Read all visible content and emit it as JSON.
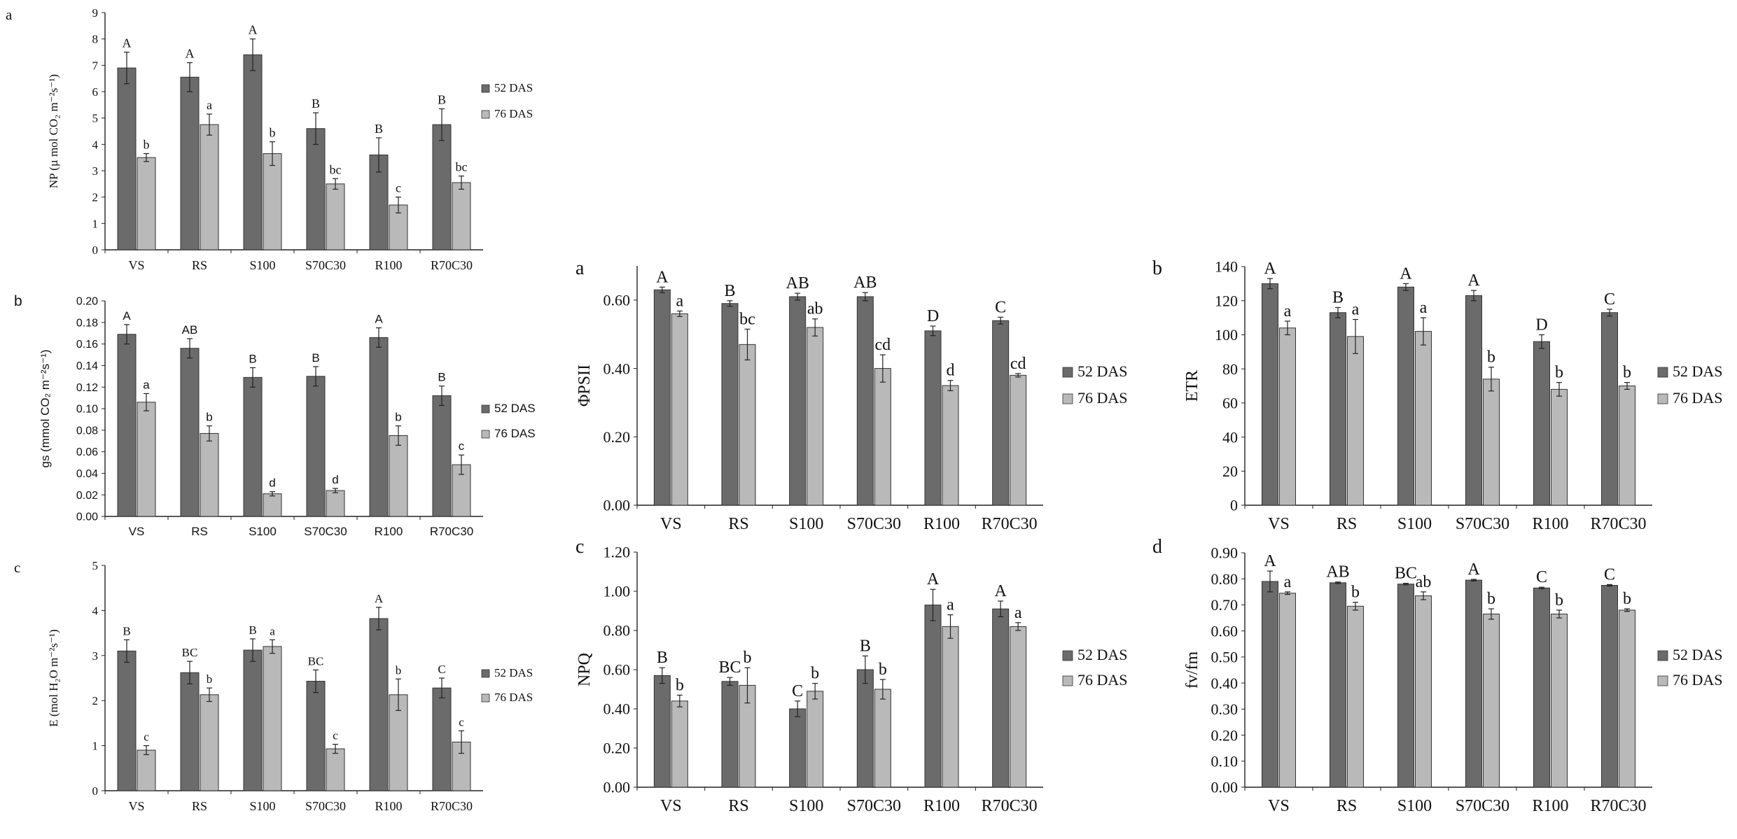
{
  "categories": [
    "VS",
    "RS",
    "S100",
    "S70C30",
    "R100",
    "R70C30"
  ],
  "legend": [
    "52 DAS",
    "76 DAS"
  ],
  "colors": {
    "dark": "#6b6b6b",
    "light": "#b9b9b9"
  },
  "chart_data": [
    {
      "id": "left-a",
      "panel_label": "a",
      "type": "bar",
      "ylabel": "NP (µ mol CO₂ m⁻²s⁻¹)",
      "ylim": [
        0,
        9
      ],
      "yticks": [
        "0",
        "1",
        "2",
        "3",
        "4",
        "5",
        "6",
        "7",
        "8",
        "9"
      ],
      "series": [
        {
          "name": "52 DAS",
          "values": [
            6.9,
            6.55,
            7.4,
            4.6,
            3.6,
            4.75
          ],
          "errors": [
            0.6,
            0.55,
            0.6,
            0.6,
            0.65,
            0.6
          ],
          "letters": [
            "A",
            "A",
            "A",
            "B",
            "B",
            "B"
          ]
        },
        {
          "name": "76 DAS",
          "values": [
            3.5,
            4.75,
            3.65,
            2.5,
            1.7,
            2.55
          ],
          "errors": [
            0.15,
            0.4,
            0.45,
            0.2,
            0.3,
            0.25
          ],
          "letters": [
            "b",
            "a",
            "b",
            "bc",
            "c",
            "bc"
          ]
        }
      ]
    },
    {
      "id": "left-b",
      "panel_label": "b",
      "type": "bar",
      "ylabel": "gs (mmol CO₂ m⁻²s⁻¹)",
      "ylim": [
        0,
        0.2
      ],
      "yticks": [
        "0.00",
        "0.02",
        "0.04",
        "0.06",
        "0.08",
        "0.10",
        "0.12",
        "0.14",
        "0.16",
        "0.18",
        "0.20"
      ],
      "series": [
        {
          "name": "52 DAS",
          "values": [
            0.169,
            0.156,
            0.129,
            0.13,
            0.166,
            0.112
          ],
          "errors": [
            0.009,
            0.009,
            0.009,
            0.009,
            0.009,
            0.009
          ],
          "letters": [
            "A",
            "AB",
            "B",
            "B",
            "A",
            "B"
          ]
        },
        {
          "name": "76 DAS",
          "values": [
            0.106,
            0.077,
            0.021,
            0.024,
            0.075,
            0.048
          ],
          "errors": [
            0.008,
            0.007,
            0.002,
            0.002,
            0.009,
            0.009
          ],
          "letters": [
            "a",
            "b",
            "d",
            "d",
            "b",
            "c"
          ]
        }
      ]
    },
    {
      "id": "left-c",
      "panel_label": "c",
      "type": "bar",
      "ylabel": "E (mol H₂O m⁻²s⁻¹)",
      "ylim": [
        0,
        5
      ],
      "yticks": [
        "0",
        "1",
        "2",
        "3",
        "4",
        "5"
      ],
      "series": [
        {
          "name": "52 DAS",
          "values": [
            3.1,
            2.62,
            3.12,
            2.43,
            3.82,
            2.28
          ],
          "errors": [
            0.25,
            0.25,
            0.25,
            0.25,
            0.25,
            0.22
          ],
          "letters": [
            "B",
            "BC",
            "B",
            "BC",
            "A",
            "C"
          ]
        },
        {
          "name": "76 DAS",
          "values": [
            0.9,
            2.13,
            3.2,
            0.93,
            2.13,
            1.08
          ],
          "errors": [
            0.1,
            0.15,
            0.15,
            0.1,
            0.35,
            0.25
          ],
          "letters": [
            "c",
            "b",
            "a",
            "c",
            "b",
            "c"
          ]
        }
      ]
    },
    {
      "id": "right-a",
      "panel_label": "a",
      "type": "bar",
      "ylabel": "ΦPSII",
      "ylim": [
        0,
        0.7
      ],
      "yticks": [
        "0.00",
        "0.20",
        "0.40",
        "0.60"
      ],
      "series": [
        {
          "name": "52 DAS",
          "values": [
            0.63,
            0.59,
            0.61,
            0.61,
            0.51,
            0.54
          ],
          "errors": [
            0.008,
            0.008,
            0.01,
            0.012,
            0.014,
            0.01
          ],
          "letters": [
            "A",
            "B",
            "AB",
            "AB",
            "D",
            "C"
          ]
        },
        {
          "name": "76 DAS",
          "values": [
            0.56,
            0.47,
            0.52,
            0.4,
            0.35,
            0.38
          ],
          "errors": [
            0.008,
            0.045,
            0.025,
            0.04,
            0.015,
            0.005
          ],
          "letters": [
            "a",
            "bc",
            "ab",
            "cd",
            "d",
            "cd"
          ]
        }
      ]
    },
    {
      "id": "right-b",
      "panel_label": "b",
      "type": "bar",
      "ylabel": "ETR",
      "ylim": [
        0,
        140
      ],
      "yticks": [
        "0",
        "20",
        "40",
        "60",
        "80",
        "100",
        "120",
        "140"
      ],
      "series": [
        {
          "name": "52 DAS",
          "values": [
            130,
            113,
            128,
            123,
            96,
            113
          ],
          "errors": [
            3,
            3,
            2,
            3,
            4,
            2
          ],
          "letters": [
            "A",
            "B",
            "A",
            "A",
            "D",
            "C"
          ]
        },
        {
          "name": "76 DAS",
          "values": [
            104,
            99,
            102,
            74,
            68,
            70
          ],
          "errors": [
            4,
            10,
            8,
            7,
            4,
            2
          ],
          "letters": [
            "a",
            "a",
            "a",
            "b",
            "b",
            "b"
          ]
        }
      ]
    },
    {
      "id": "right-c",
      "panel_label": "c",
      "type": "bar",
      "ylabel": "NPQ",
      "ylim": [
        0,
        1.2
      ],
      "yticks": [
        "0.00",
        "0.20",
        "0.40",
        "0.60",
        "0.80",
        "1.00",
        "1.20"
      ],
      "series": [
        {
          "name": "52 DAS",
          "values": [
            0.57,
            0.54,
            0.4,
            0.6,
            0.93,
            0.91
          ],
          "errors": [
            0.04,
            0.02,
            0.04,
            0.07,
            0.08,
            0.04
          ],
          "letters": [
            "B",
            "BC",
            "C",
            "B",
            "A",
            "A"
          ]
        },
        {
          "name": "76 DAS",
          "values": [
            0.44,
            0.52,
            0.49,
            0.5,
            0.82,
            0.82
          ],
          "errors": [
            0.03,
            0.09,
            0.04,
            0.05,
            0.06,
            0.02
          ],
          "letters": [
            "b",
            "b",
            "b",
            "b",
            "a",
            "a"
          ]
        }
      ]
    },
    {
      "id": "right-d",
      "panel_label": "d",
      "type": "bar",
      "ylabel": "fv/fm",
      "ylim": [
        0,
        0.9
      ],
      "yticks": [
        "0.00",
        "0.10",
        "0.20",
        "0.30",
        "0.40",
        "0.50",
        "0.60",
        "0.70",
        "0.80",
        "0.90"
      ],
      "series": [
        {
          "name": "52 DAS",
          "values": [
            0.79,
            0.785,
            0.78,
            0.795,
            0.765,
            0.775
          ],
          "errors": [
            0.04,
            0.003,
            0.003,
            0.003,
            0.003,
            0.003
          ],
          "letters": [
            "A",
            "AB",
            "BC",
            "A",
            "C",
            "C"
          ]
        },
        {
          "name": "76 DAS",
          "values": [
            0.745,
            0.695,
            0.735,
            0.665,
            0.665,
            0.68
          ],
          "errors": [
            0.005,
            0.015,
            0.015,
            0.02,
            0.015,
            0.005
          ],
          "letters": [
            "a",
            "b",
            "ab",
            "b",
            "b",
            "b"
          ]
        }
      ]
    }
  ]
}
